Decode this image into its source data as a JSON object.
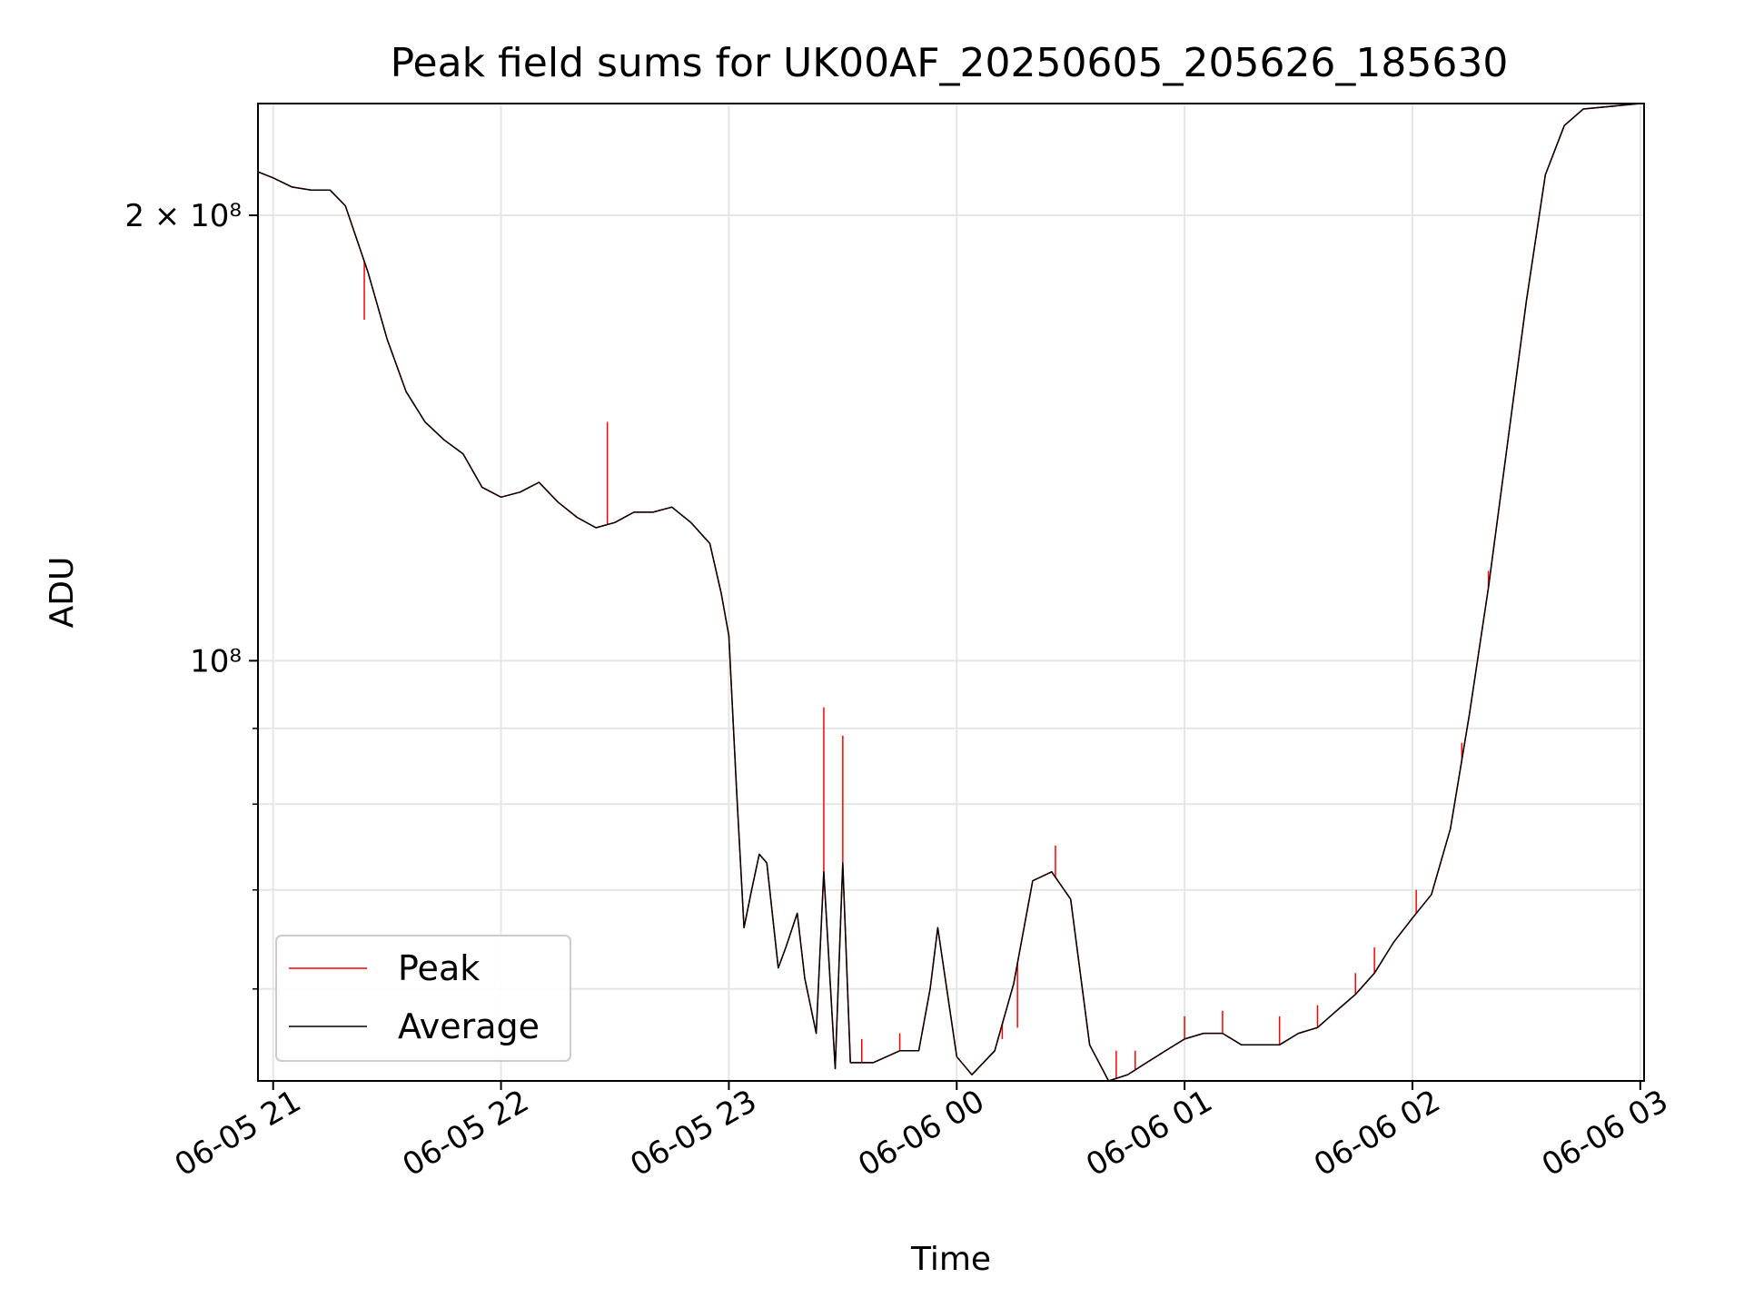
{
  "chart_data": {
    "type": "line",
    "title": "Peak field sums for UK00AF_20250605_205626_185630",
    "xlabel": "Time",
    "ylabel": "ADU",
    "yscale": "log",
    "ylim": [
      52000000,
      238000000
    ],
    "xlim": [
      "2025-06-05 20:56",
      "2025-06-06 03:01"
    ],
    "grid": true,
    "legend_position": "lower-left",
    "x_ticks": [
      {
        "x": "2025-06-05 21:00",
        "label": "06-05 21"
      },
      {
        "x": "2025-06-05 22:00",
        "label": "06-05 22"
      },
      {
        "x": "2025-06-05 23:00",
        "label": "06-05 23"
      },
      {
        "x": "2025-06-06 00:00",
        "label": "06-06 00"
      },
      {
        "x": "2025-06-06 01:00",
        "label": "06-06 01"
      },
      {
        "x": "2025-06-06 02:00",
        "label": "06-06 02"
      },
      {
        "x": "2025-06-06 03:00",
        "label": "06-06 03"
      }
    ],
    "y_ticks": [
      {
        "y": 200000000,
        "label": "2 × 10⁸"
      },
      {
        "y": 100000000,
        "label": "10⁸"
      }
    ],
    "y_minor_ticks": [
      60000000,
      70000000,
      80000000,
      90000000
    ],
    "series": [
      {
        "name": "Average",
        "color": "#000000",
        "points": [
          [
            "2025-06-05 20:56",
            214000000
          ],
          [
            "2025-06-05 21:00",
            212000000
          ],
          [
            "2025-06-05 21:05",
            209000000
          ],
          [
            "2025-06-05 21:10",
            208000000
          ],
          [
            "2025-06-05 21:15",
            208000000
          ],
          [
            "2025-06-05 21:19",
            203000000
          ],
          [
            "2025-06-05 21:25",
            183000000
          ],
          [
            "2025-06-05 21:30",
            165000000
          ],
          [
            "2025-06-05 21:35",
            152000000
          ],
          [
            "2025-06-05 21:40",
            145000000
          ],
          [
            "2025-06-05 21:45",
            141000000
          ],
          [
            "2025-06-05 21:50",
            138000000
          ],
          [
            "2025-06-05 21:55",
            131000000
          ],
          [
            "2025-06-05 22:00",
            129000000
          ],
          [
            "2025-06-05 22:05",
            130000000
          ],
          [
            "2025-06-05 22:10",
            132000000
          ],
          [
            "2025-06-05 22:15",
            128000000
          ],
          [
            "2025-06-05 22:20",
            125000000
          ],
          [
            "2025-06-05 22:25",
            123000000
          ],
          [
            "2025-06-05 22:30",
            124000000
          ],
          [
            "2025-06-05 22:35",
            126000000
          ],
          [
            "2025-06-05 22:40",
            126000000
          ],
          [
            "2025-06-05 22:45",
            127000000
          ],
          [
            "2025-06-05 22:50",
            124000000
          ],
          [
            "2025-06-05 22:55",
            120000000
          ],
          [
            "2025-06-05 22:58",
            111000000
          ],
          [
            "2025-06-05 23:00",
            104000000
          ],
          [
            "2025-06-05 23:02",
            82000000
          ],
          [
            "2025-06-05 23:04",
            66000000
          ],
          [
            "2025-06-05 23:06",
            70000000
          ],
          [
            "2025-06-05 23:08",
            74000000
          ],
          [
            "2025-06-05 23:10",
            73000000
          ],
          [
            "2025-06-05 23:13",
            62000000
          ],
          [
            "2025-06-05 23:15",
            64000000
          ],
          [
            "2025-06-05 23:18",
            67500000
          ],
          [
            "2025-06-05 23:20",
            61000000
          ],
          [
            "2025-06-05 23:23",
            56000000
          ],
          [
            "2025-06-05 23:25",
            72000000
          ],
          [
            "2025-06-05 23:28",
            53000000
          ],
          [
            "2025-06-05 23:30",
            73000000
          ],
          [
            "2025-06-05 23:32",
            53500000
          ],
          [
            "2025-06-05 23:38",
            53500000
          ],
          [
            "2025-06-05 23:45",
            54500000
          ],
          [
            "2025-06-05 23:50",
            54500000
          ],
          [
            "2025-06-05 23:53",
            60000000
          ],
          [
            "2025-06-05 23:55",
            66000000
          ],
          [
            "2025-06-06 00:00",
            54000000
          ],
          [
            "2025-06-06 00:04",
            52500000
          ],
          [
            "2025-06-06 00:10",
            54500000
          ],
          [
            "2025-06-06 00:15",
            60500000
          ],
          [
            "2025-06-06 00:20",
            71000000
          ],
          [
            "2025-06-06 00:25",
            72000000
          ],
          [
            "2025-06-06 00:30",
            69000000
          ],
          [
            "2025-06-06 00:35",
            55000000
          ],
          [
            "2025-06-06 00:40",
            52000000
          ],
          [
            "2025-06-06 00:45",
            52500000
          ],
          [
            "2025-06-06 00:50",
            53500000
          ],
          [
            "2025-06-06 00:55",
            54500000
          ],
          [
            "2025-06-06 01:00",
            55500000
          ],
          [
            "2025-06-06 01:05",
            56000000
          ],
          [
            "2025-06-06 01:10",
            56000000
          ],
          [
            "2025-06-06 01:15",
            55000000
          ],
          [
            "2025-06-06 01:20",
            55000000
          ],
          [
            "2025-06-06 01:25",
            55000000
          ],
          [
            "2025-06-06 01:30",
            56000000
          ],
          [
            "2025-06-06 01:35",
            56500000
          ],
          [
            "2025-06-06 01:40",
            58000000
          ],
          [
            "2025-06-06 01:45",
            59500000
          ],
          [
            "2025-06-06 01:50",
            61500000
          ],
          [
            "2025-06-06 01:55",
            64500000
          ],
          [
            "2025-06-06 02:00",
            67000000
          ],
          [
            "2025-06-06 02:05",
            69500000
          ],
          [
            "2025-06-06 02:10",
            77000000
          ],
          [
            "2025-06-06 02:15",
            92000000
          ],
          [
            "2025-06-06 02:20",
            112000000
          ],
          [
            "2025-06-06 02:25",
            140000000
          ],
          [
            "2025-06-06 02:30",
            175000000
          ],
          [
            "2025-06-06 02:35",
            213000000
          ],
          [
            "2025-06-06 02:40",
            230000000
          ],
          [
            "2025-06-06 02:45",
            236000000
          ],
          [
            "2025-06-06 03:00",
            238000000
          ]
        ]
      },
      {
        "name": "Peak",
        "color": "#ff0000",
        "points": [
          [
            "2025-06-05 21:24",
            170000000
          ],
          [
            "2025-06-05 22:28",
            145000000
          ],
          [
            "2025-06-05 23:25",
            93000000
          ],
          [
            "2025-06-05 23:30",
            89000000
          ],
          [
            "2025-06-05 23:35",
            55500000
          ],
          [
            "2025-06-05 23:45",
            56000000
          ],
          [
            "2025-06-06 00:12",
            55500000
          ],
          [
            "2025-06-06 00:16",
            56500000
          ],
          [
            "2025-06-06 00:26",
            75000000
          ],
          [
            "2025-06-06 00:42",
            54500000
          ],
          [
            "2025-06-06 00:47",
            54500000
          ],
          [
            "2025-06-06 01:00",
            57500000
          ],
          [
            "2025-06-06 01:10",
            58000000
          ],
          [
            "2025-06-06 01:25",
            57500000
          ],
          [
            "2025-06-06 01:35",
            58500000
          ],
          [
            "2025-06-06 01:45",
            61500000
          ],
          [
            "2025-06-06 01:50",
            64000000
          ],
          [
            "2025-06-06 02:01",
            70000000
          ],
          [
            "2025-06-06 02:13",
            88000000
          ],
          [
            "2025-06-06 02:20",
            115000000
          ]
        ]
      }
    ]
  }
}
